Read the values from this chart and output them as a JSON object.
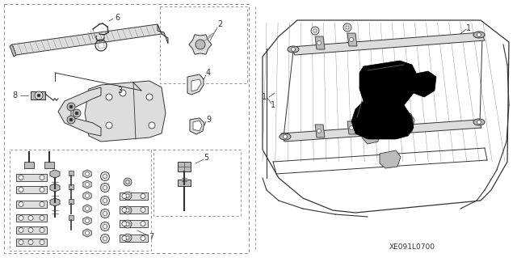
{
  "bg_color": "#ffffff",
  "code": "XE091L0700",
  "fig_width": 6.4,
  "fig_height": 3.19,
  "gray1": "#333333",
  "gray2": "#888888",
  "gray3": "#bbbbbb",
  "gray4": "#dddddd",
  "lw_main": 0.7,
  "lw_thin": 0.4
}
